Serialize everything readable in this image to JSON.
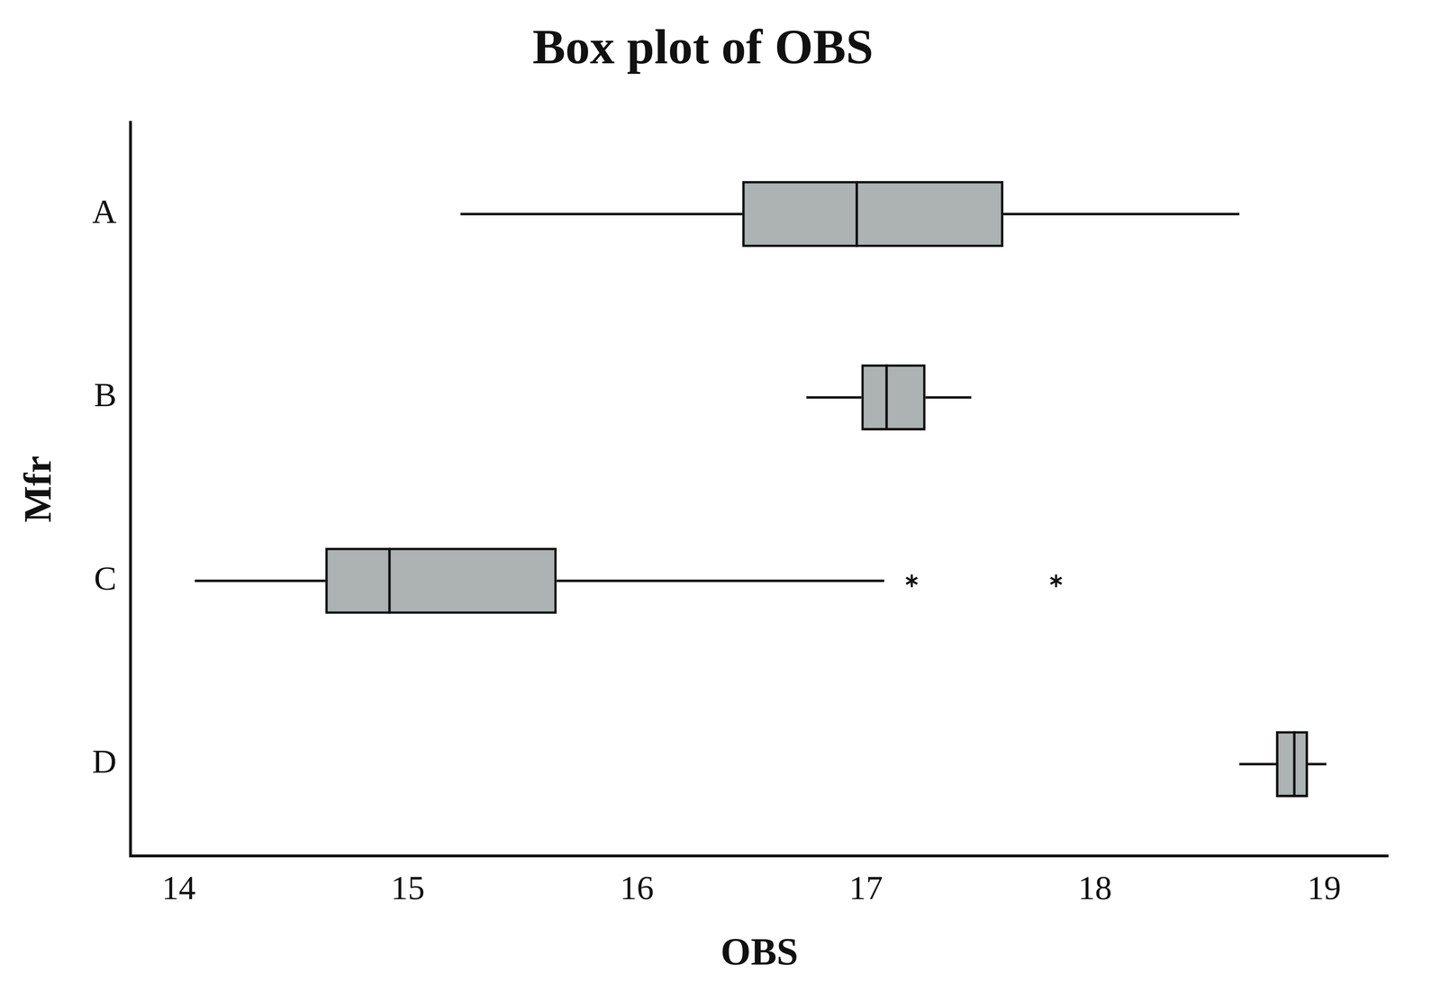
{
  "chart_data": {
    "type": "boxplot",
    "title": "Box plot of OBS",
    "x_label": "OBS",
    "y_label": "Mfr",
    "orientation": "horizontal",
    "categories": [
      "A",
      "B",
      "C",
      "D"
    ],
    "series": [
      {
        "name": "A",
        "min": 15.23,
        "q1": 16.46,
        "median": 16.96,
        "q3": 17.6,
        "max": 18.63,
        "outliers": []
      },
      {
        "name": "B",
        "min": 16.74,
        "q1": 16.98,
        "median": 17.09,
        "q3": 17.26,
        "max": 17.46,
        "outliers": []
      },
      {
        "name": "C",
        "min": 14.07,
        "q1": 14.64,
        "median": 14.92,
        "q3": 15.65,
        "max": 17.08,
        "outliers": [
          17.2,
          17.83
        ]
      },
      {
        "name": "D",
        "min": 18.63,
        "q1": 18.79,
        "median": 18.87,
        "q3": 18.93,
        "max": 19.01,
        "outliers": []
      }
    ],
    "color": "#adb2b3",
    "marker": "star",
    "xlim": [
      13.79,
      19.28
    ],
    "xticks": [
      14,
      15,
      16,
      17,
      18,
      19
    ],
    "grid": false
  }
}
